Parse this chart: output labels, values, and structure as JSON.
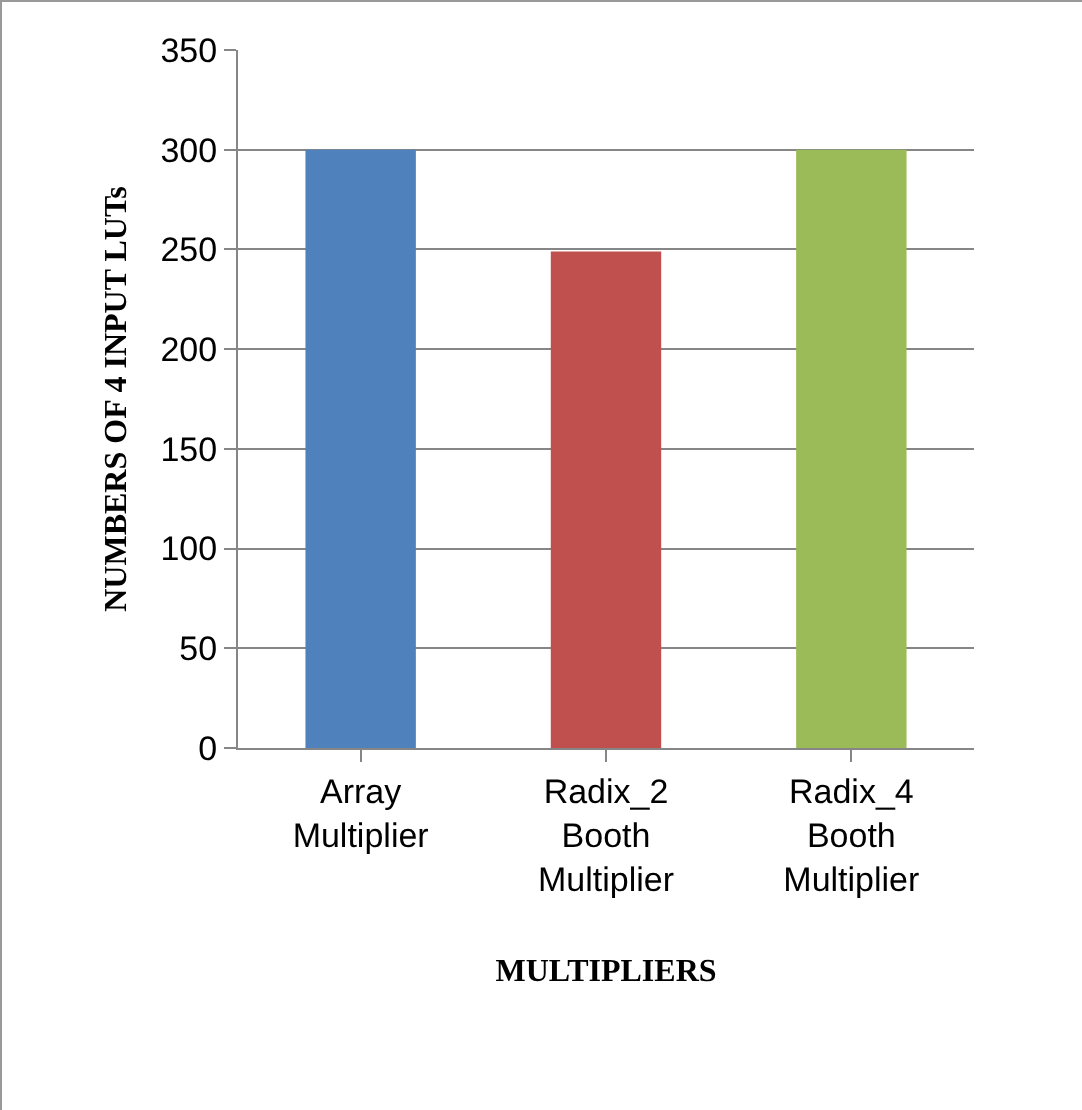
{
  "chart_data": {
    "type": "bar",
    "xlabel": "MULTIPLIERS",
    "ylabel": "NUMBERS OF 4 INPUT LUTs",
    "categories": [
      "Array Multiplier",
      "Radix_2 Booth Multiplier",
      "Radix_4 Booth Multiplier"
    ],
    "values": [
      300,
      249,
      300
    ],
    "colors": [
      "#4f81bd",
      "#c0504d",
      "#9bbb59"
    ],
    "ylim": [
      0,
      350
    ],
    "yticks": [
      0,
      50,
      100,
      150,
      200,
      250,
      300,
      350
    ],
    "grid": "y"
  }
}
